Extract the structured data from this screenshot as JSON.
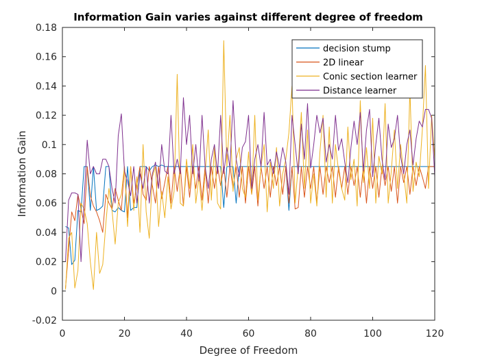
{
  "chart_data": {
    "type": "line",
    "title": "Information Gain varies against different degree of freedom",
    "xlabel": "Degree of Freedom",
    "ylabel": "Information Gain",
    "xlim": [
      0,
      120
    ],
    "ylim": [
      -0.02,
      0.18
    ],
    "xticks": [
      0,
      20,
      40,
      60,
      80,
      100,
      120
    ],
    "yticks": [
      -0.02,
      0,
      0.02,
      0.04,
      0.06,
      0.08,
      0.1,
      0.12,
      0.14,
      0.16,
      0.18
    ],
    "grid": false,
    "legend_position": "top-right",
    "x": [
      1,
      2,
      3,
      4,
      5,
      6,
      7,
      8,
      9,
      10,
      11,
      12,
      13,
      14,
      15,
      16,
      17,
      18,
      19,
      20,
      21,
      22,
      23,
      24,
      25,
      26,
      27,
      28,
      29,
      30,
      31,
      32,
      33,
      34,
      35,
      36,
      37,
      38,
      39,
      40,
      41,
      42,
      43,
      44,
      45,
      46,
      47,
      48,
      49,
      50,
      51,
      52,
      53,
      54,
      55,
      56,
      57,
      58,
      59,
      60,
      61,
      62,
      63,
      64,
      65,
      66,
      67,
      68,
      69,
      70,
      71,
      72,
      73,
      74,
      75,
      76,
      77,
      78,
      79,
      80,
      81,
      82,
      83,
      84,
      85,
      86,
      87,
      88,
      89,
      90,
      91,
      92,
      93,
      94,
      95,
      96,
      97,
      98,
      99,
      100,
      101,
      102,
      103,
      104,
      105,
      106,
      107,
      108,
      109,
      110,
      111,
      112,
      113,
      114,
      115,
      116,
      117,
      118,
      119,
      120
    ],
    "series": [
      {
        "name": "decision stump",
        "color": "#0072BD",
        "values": [
          0.044,
          0.043,
          0.018,
          0.021,
          0.055,
          0.054,
          0.085,
          0.085,
          0.055,
          0.085,
          0.055,
          0.056,
          0.058,
          0.085,
          0.085,
          0.055,
          0.054,
          0.057,
          0.055,
          0.054,
          0.085,
          0.055,
          0.057,
          0.057,
          0.085,
          0.085,
          0.085,
          0.082,
          0.085,
          0.086,
          0.085,
          0.086,
          0.085,
          0.085,
          0.085,
          0.085,
          0.085,
          0.085,
          0.085,
          0.085,
          0.085,
          0.085,
          0.085,
          0.085,
          0.085,
          0.085,
          0.085,
          0.085,
          0.085,
          0.085,
          0.085,
          0.057,
          0.085,
          0.085,
          0.085,
          0.06,
          0.085,
          0.085,
          0.085,
          0.085,
          0.085,
          0.085,
          0.085,
          0.085,
          0.085,
          0.085,
          0.085,
          0.085,
          0.085,
          0.085,
          0.085,
          0.085,
          0.055,
          0.085,
          0.085,
          0.085,
          0.085,
          0.085,
          0.085,
          0.085,
          0.085,
          0.085,
          0.085,
          0.085,
          0.085,
          0.085,
          0.085,
          0.085,
          0.085,
          0.085,
          0.085,
          0.085,
          0.085,
          0.085,
          0.085,
          0.085,
          0.085,
          0.085,
          0.085,
          0.085,
          0.085,
          0.085,
          0.085,
          0.085,
          0.085,
          0.085,
          0.085,
          0.085,
          0.085,
          0.085,
          0.085,
          0.085,
          0.085,
          0.085,
          0.085,
          0.085,
          0.085,
          0.085,
          0.085,
          0.085
        ]
      },
      {
        "name": "2D linear",
        "color": "#D95319",
        "values": [
          0.002,
          0.028,
          0.054,
          0.048,
          0.066,
          0.056,
          0.046,
          0.085,
          0.065,
          0.058,
          0.054,
          0.048,
          0.04,
          0.066,
          0.06,
          0.056,
          0.07,
          0.062,
          0.055,
          0.085,
          0.05,
          0.085,
          0.06,
          0.072,
          0.085,
          0.066,
          0.062,
          0.085,
          0.072,
          0.06,
          0.085,
          0.063,
          0.074,
          0.085,
          0.06,
          0.085,
          0.068,
          0.085,
          0.058,
          0.085,
          0.064,
          0.085,
          0.07,
          0.085,
          0.062,
          0.085,
          0.06,
          0.085,
          0.07,
          0.085,
          0.072,
          0.085,
          0.064,
          0.085,
          0.07,
          0.085,
          0.064,
          0.085,
          0.06,
          0.085,
          0.066,
          0.085,
          0.058,
          0.085,
          0.07,
          0.085,
          0.064,
          0.085,
          0.072,
          0.085,
          0.066,
          0.085,
          0.06,
          0.085,
          0.056,
          0.057,
          0.085,
          0.064,
          0.085,
          0.07,
          0.085,
          0.06,
          0.085,
          0.066,
          0.085,
          0.074,
          0.085,
          0.064,
          0.085,
          0.07,
          0.085,
          0.066,
          0.085,
          0.072,
          0.085,
          0.064,
          0.085,
          0.06,
          0.085,
          0.07,
          0.085,
          0.064,
          0.085,
          0.072,
          0.085,
          0.068,
          0.085,
          0.06,
          0.085,
          0.074,
          0.085,
          0.066,
          0.085,
          0.072,
          0.085,
          0.078,
          0.07,
          0.085,
          0.085,
          0.085
        ]
      },
      {
        "name": "Conic section learner",
        "color": "#EDB120",
        "values": [
          0.001,
          0.036,
          0.04,
          0.002,
          0.014,
          0.06,
          0.056,
          0.046,
          0.02,
          0.001,
          0.04,
          0.012,
          0.018,
          0.046,
          0.07,
          0.055,
          0.032,
          0.06,
          0.066,
          0.085,
          0.044,
          0.085,
          0.055,
          0.078,
          0.04,
          0.1,
          0.054,
          0.036,
          0.078,
          0.085,
          0.044,
          0.068,
          0.05,
          0.078,
          0.056,
          0.068,
          0.148,
          0.06,
          0.058,
          0.09,
          0.07,
          0.1,
          0.06,
          0.078,
          0.055,
          0.08,
          0.11,
          0.062,
          0.098,
          0.06,
          0.056,
          0.171,
          0.085,
          0.12,
          0.068,
          0.09,
          0.098,
          0.07,
          0.064,
          0.095,
          0.066,
          0.12,
          0.062,
          0.085,
          0.1,
          0.054,
          0.088,
          0.07,
          0.098,
          0.058,
          0.08,
          0.09,
          0.108,
          0.14,
          0.06,
          0.085,
          0.122,
          0.07,
          0.11,
          0.06,
          0.08,
          0.058,
          0.095,
          0.12,
          0.064,
          0.112,
          0.06,
          0.1,
          0.082,
          0.07,
          0.062,
          0.112,
          0.076,
          0.09,
          0.058,
          0.13,
          0.074,
          0.098,
          0.07,
          0.118,
          0.06,
          0.092,
          0.08,
          0.128,
          0.06,
          0.082,
          0.11,
          0.07,
          0.1,
          0.08,
          0.06,
          0.138,
          0.068,
          0.088,
          0.078,
          0.11,
          0.154,
          0.07,
          0.12,
          0.09
        ]
      },
      {
        "name": "Distance learner",
        "color": "#7E2F8E",
        "values": [
          0.02,
          0.062,
          0.067,
          0.067,
          0.066,
          0.02,
          0.062,
          0.103,
          0.08,
          0.085,
          0.08,
          0.08,
          0.09,
          0.09,
          0.085,
          0.07,
          0.06,
          0.106,
          0.121,
          0.082,
          0.075,
          0.065,
          0.085,
          0.06,
          0.08,
          0.07,
          0.085,
          0.06,
          0.08,
          0.088,
          0.07,
          0.1,
          0.082,
          0.08,
          0.12,
          0.08,
          0.09,
          0.08,
          0.132,
          0.1,
          0.12,
          0.08,
          0.1,
          0.075,
          0.12,
          0.085,
          0.07,
          0.09,
          0.1,
          0.08,
          0.12,
          0.08,
          0.098,
          0.084,
          0.13,
          0.09,
          0.078,
          0.098,
          0.102,
          0.12,
          0.07,
          0.09,
          0.1,
          0.085,
          0.122,
          0.086,
          0.09,
          0.08,
          0.095,
          0.084,
          0.098,
          0.088,
          0.066,
          0.12,
          0.1,
          0.08,
          0.114,
          0.09,
          0.128,
          0.084,
          0.1,
          0.12,
          0.108,
          0.118,
          0.088,
          0.1,
          0.09,
          0.12,
          0.096,
          0.104,
          0.088,
          0.074,
          0.098,
          0.116,
          0.1,
          0.122,
          0.082,
          0.11,
          0.124,
          0.078,
          0.1,
          0.118,
          0.09,
          0.076,
          0.114,
          0.098,
          0.104,
          0.12,
          0.092,
          0.08,
          0.1,
          0.11,
          0.086,
          0.104,
          0.116,
          0.112,
          0.124,
          0.124,
          0.118,
          0.078
        ]
      }
    ]
  }
}
